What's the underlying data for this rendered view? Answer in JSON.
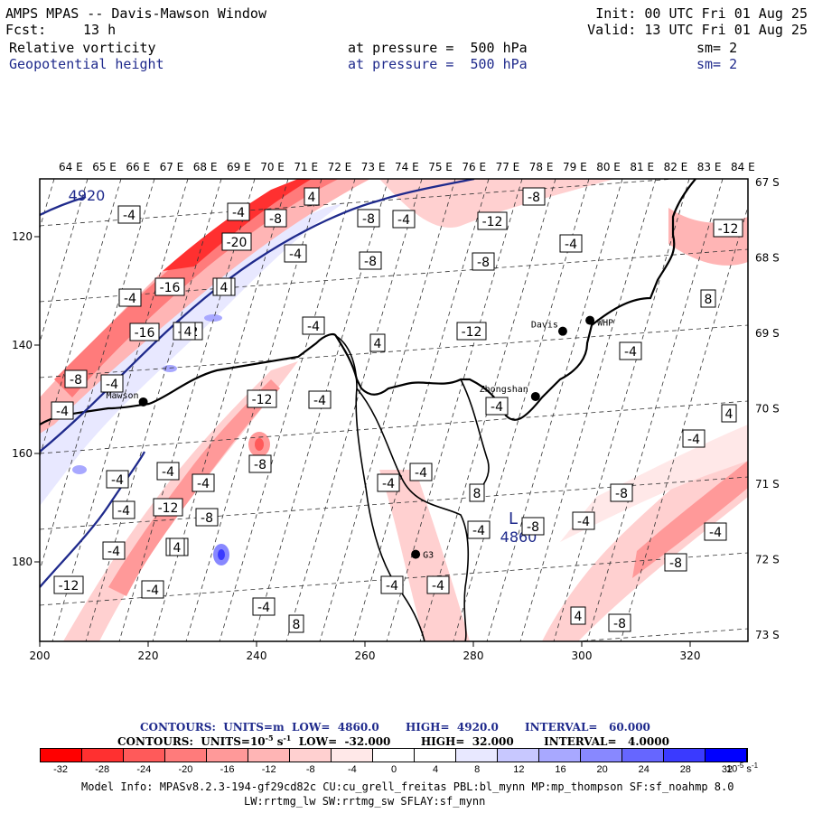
{
  "header": {
    "title": "AMPS MPAS -- Davis-Mawson Window",
    "forecast_label": "Fcst:",
    "forecast_value": "13 h",
    "init": "Init: 00 UTC Fri 01 Aug 25",
    "valid": "Valid: 13 UTC Fri 01 Aug 25",
    "field1_name": "Relative vorticity",
    "field1_level": "at pressure =  500 hPa",
    "field1_sm": "sm= 2",
    "field2_name": "Geopotential height",
    "field2_level": "at pressure =  500 hPa",
    "field2_sm": "sm= 2"
  },
  "map": {
    "lon_labels": [
      "64 E",
      "65 E",
      "66 E",
      "67 E",
      "68 E",
      "69 E",
      "70 E",
      "71 E",
      "72 E",
      "73 E",
      "74 E",
      "75 E",
      "76 E",
      "77 E",
      "78 E",
      "79 E",
      "80 E",
      "81 E",
      "82 E",
      "83 E",
      "84 E"
    ],
    "lat_labels": [
      "67 S",
      "68 S",
      "69 S",
      "70 S",
      "71 S",
      "72 S",
      "73 S"
    ],
    "x_ticks": [
      "200",
      "220",
      "240",
      "260",
      "280",
      "300",
      "320"
    ],
    "y_ticks": [
      "120",
      "140",
      "160",
      "180"
    ],
    "stations": [
      {
        "name": "Davis",
        "x": 296,
        "y": 138
      },
      {
        "name": "WHP",
        "x": 301,
        "y": 136
      },
      {
        "name": "Mawson",
        "x": 219,
        "y": 151
      },
      {
        "name": "Zhongshan",
        "x": 291,
        "y": 150
      },
      {
        "name": "G3",
        "x": 269,
        "y": 179
      }
    ],
    "height_contour_labels": [
      "4920",
      "4860"
    ],
    "low_symbol": "L",
    "vorticity_labels": [
      "-8",
      "-4",
      "-8",
      "-12",
      "-8",
      "-20",
      "-4",
      "4",
      "-4",
      "-8",
      "-12",
      "-4",
      "-8",
      "-4",
      "-16",
      "-4",
      "-8",
      "-16",
      "-12",
      "-4",
      "8",
      "4",
      "-12",
      "-4",
      "-8",
      "-4",
      "-12",
      "-4",
      "-4",
      "4",
      "-4",
      "-8",
      "-4",
      "-4",
      "-4",
      "4",
      "-4",
      "-4",
      "-8",
      "-12",
      "-8",
      "-4",
      "-4",
      "-8",
      "-4",
      "-4",
      "-4",
      "-8",
      "-8",
      "-4",
      "-4",
      "-4",
      "-12",
      "-4",
      "4",
      "8",
      "8",
      "8",
      "4",
      "4",
      "4",
      "-4",
      "-4",
      "-8"
    ]
  },
  "colorbar": {
    "contours_line1": "CONTOURS:  UNITS=m  LOW=  4860.0       HIGH=  4920.0       INTERVAL=   60.000",
    "contours_line2_a": "CONTOURS:  UNITS=10",
    "contours_line2_exp": "-5",
    "contours_line2_b": " s",
    "contours_line2_exp2": "-1",
    "contours_line2_c": "  LOW=  -32.000        HIGH=  32.000        INTERVAL=   4.0000",
    "ticks": [
      "-32",
      "-28",
      "-24",
      "-20",
      "-16",
      "-12",
      "-8",
      "-4",
      "0",
      "4",
      "8",
      "12",
      "16",
      "20",
      "24",
      "28",
      "32"
    ],
    "units": "10",
    "units_exp": "-5",
    "units_tail": " s",
    "units_exp2": "-1",
    "colors": [
      "#ff0000",
      "#ff3030",
      "#ff5a5a",
      "#ff7b7b",
      "#ff9999",
      "#ffb5b5",
      "#ffd0d0",
      "#ffe8e8",
      "#ffffff",
      "#ffffff",
      "#e8e8ff",
      "#c8c8ff",
      "#a8a8ff",
      "#8888ff",
      "#6666ff",
      "#3a3aff",
      "#0000ff"
    ]
  },
  "model_info": {
    "line1": "Model Info: MPASv8.2.3-194-gf29cd82c CU:cu_grell_freitas PBL:bl_mynn MP:mp_thompson SF:sf_noahmp 8.0",
    "line2": "LW:rrtmg_lw SW:rrtmg_sw SFLAY:sf_mynn"
  }
}
